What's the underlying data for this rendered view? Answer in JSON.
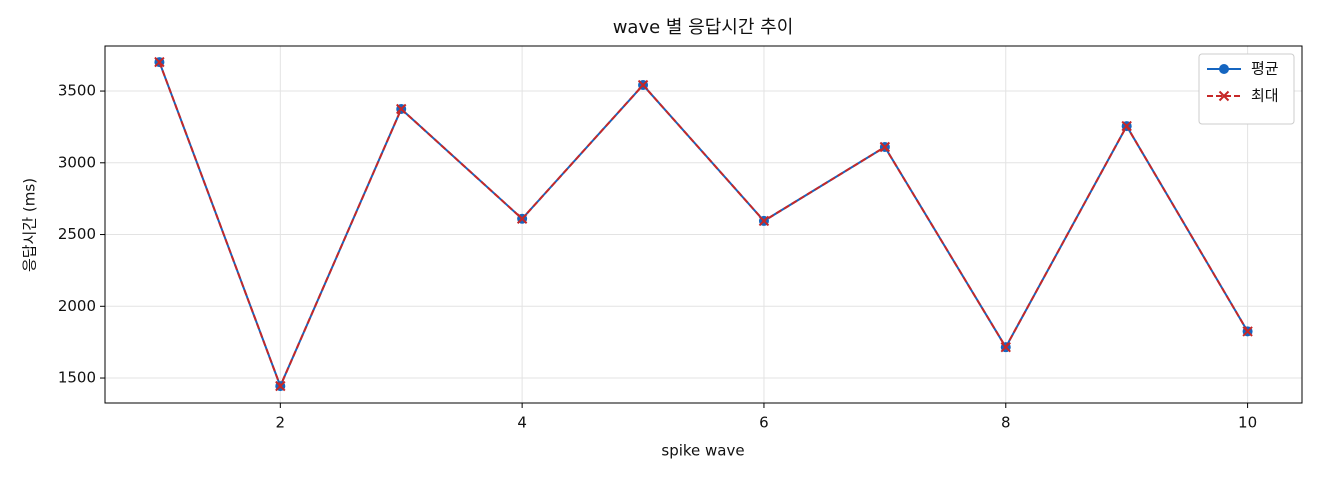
{
  "chart_data": {
    "type": "line",
    "title": "wave 별 응답시간 추이",
    "xlabel": "spike wave",
    "ylabel": "응답시간 (ms)",
    "x": [
      1,
      2,
      3,
      4,
      5,
      6,
      7,
      8,
      9,
      10
    ],
    "series": [
      {
        "name": "평균",
        "color": "#1565c0",
        "marker": "o",
        "linestyle": "solid",
        "values": [
          3702,
          1444,
          3375,
          2610,
          3542,
          2595,
          3110,
          1715,
          3256,
          1825
        ]
      },
      {
        "name": "최대",
        "color": "#c62828",
        "marker": "x",
        "linestyle": "dashed",
        "values": [
          3702,
          1444,
          3375,
          2610,
          3542,
          2595,
          3110,
          1715,
          3256,
          1825
        ]
      }
    ],
    "xlim": [
      0.55,
      10.45
    ],
    "xticks": [
      2,
      4,
      6,
      8,
      10
    ],
    "ylim": [
      1326,
      3814
    ],
    "yticks": [
      1500,
      2000,
      2500,
      3000,
      3500
    ],
    "grid": true,
    "legend": "upper right"
  }
}
